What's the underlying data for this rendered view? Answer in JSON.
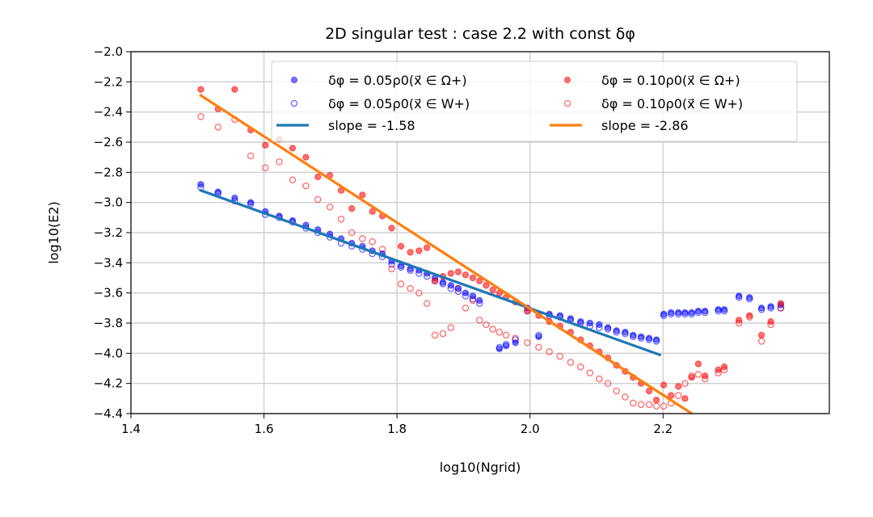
{
  "chart_data": {
    "type": "scatter",
    "title": "2D singular test : case 2.2 with const δφ",
    "xlabel": "log10(Ngrid)",
    "ylabel": "log10(E2)",
    "xlim": [
      1.4,
      2.45
    ],
    "ylim": [
      -4.4,
      -2.0
    ],
    "xticks": [
      1.4,
      1.6,
      1.8,
      2.0,
      2.2
    ],
    "xtick_labels": [
      "1.4",
      "1.6",
      "1.8",
      "2.0",
      "2.2"
    ],
    "yticks": [
      -4.4,
      -4.2,
      -4.0,
      -3.8,
      -3.6,
      -3.4,
      -3.2,
      -3.0,
      -2.8,
      -2.6,
      -2.4,
      -2.2,
      -2.0
    ],
    "ytick_labels": [
      "−4.4",
      "−4.2",
      "−4.0",
      "−3.8",
      "−3.6",
      "−3.4",
      "−3.2",
      "−3.0",
      "−2.8",
      "−2.6",
      "−2.4",
      "−2.2",
      "−2.0"
    ],
    "grid": true,
    "legend_position": "top-right",
    "series": [
      {
        "name": "δφ = 0.05ρ0(x⃗ ∈ Ω+)",
        "kind": "scatter-filled",
        "color": "#0000ff",
        "x": [
          1.505,
          1.531,
          1.556,
          1.58,
          1.602,
          1.623,
          1.643,
          1.663,
          1.681,
          1.699,
          1.716,
          1.732,
          1.748,
          1.763,
          1.778,
          1.792,
          1.806,
          1.82,
          1.833,
          1.845,
          1.857,
          1.869,
          1.881,
          1.892,
          1.903,
          1.914,
          1.924,
          1.954,
          1.964,
          1.978,
          1.996,
          2.013,
          2.029,
          2.045,
          2.061,
          2.076,
          2.09,
          2.104,
          2.117,
          2.13,
          2.143,
          2.155,
          2.167,
          2.179,
          2.19,
          2.201,
          2.212,
          2.223,
          2.233,
          2.243,
          2.253,
          2.263,
          2.283,
          2.292,
          2.314,
          2.33,
          2.348,
          2.362,
          2.377
        ],
        "y": [
          -2.88,
          -2.93,
          -2.97,
          -3.0,
          -3.06,
          -3.09,
          -3.12,
          -3.15,
          -3.18,
          -3.21,
          -3.24,
          -3.27,
          -3.29,
          -3.32,
          -3.34,
          -3.39,
          -3.42,
          -3.44,
          -3.45,
          -3.47,
          -3.5,
          -3.53,
          -3.55,
          -3.57,
          -3.6,
          -3.62,
          -3.65,
          -3.97,
          -3.95,
          -3.93,
          -3.7,
          -3.89,
          -3.74,
          -3.75,
          -3.77,
          -3.79,
          -3.8,
          -3.81,
          -3.83,
          -3.85,
          -3.86,
          -3.88,
          -3.89,
          -3.9,
          -3.91,
          -3.74,
          -3.73,
          -3.73,
          -3.73,
          -3.73,
          -3.72,
          -3.72,
          -3.71,
          -3.71,
          -3.62,
          -3.63,
          -3.7,
          -3.69,
          -3.68
        ]
      },
      {
        "name": "δφ = 0.05ρ0(x⃗ ∈ W+)",
        "kind": "scatter-open",
        "color": "#0000ff",
        "x": [
          1.505,
          1.531,
          1.556,
          1.58,
          1.602,
          1.623,
          1.643,
          1.663,
          1.681,
          1.699,
          1.716,
          1.732,
          1.748,
          1.763,
          1.778,
          1.792,
          1.806,
          1.82,
          1.833,
          1.845,
          1.857,
          1.869,
          1.881,
          1.892,
          1.903,
          1.914,
          1.924,
          1.954,
          1.964,
          1.978,
          1.996,
          2.013,
          2.029,
          2.045,
          2.061,
          2.076,
          2.09,
          2.104,
          2.117,
          2.13,
          2.143,
          2.155,
          2.167,
          2.179,
          2.19,
          2.201,
          2.212,
          2.223,
          2.233,
          2.243,
          2.253,
          2.263,
          2.283,
          2.292,
          2.314,
          2.33,
          2.348,
          2.362,
          2.377
        ],
        "y": [
          -2.9,
          -2.94,
          -2.99,
          -3.01,
          -3.08,
          -3.1,
          -3.13,
          -3.17,
          -3.2,
          -3.23,
          -3.27,
          -3.29,
          -3.31,
          -3.34,
          -3.36,
          -3.41,
          -3.43,
          -3.45,
          -3.47,
          -3.49,
          -3.52,
          -3.54,
          -3.57,
          -3.59,
          -3.62,
          -3.64,
          -3.67,
          -3.96,
          -3.94,
          -3.91,
          -3.72,
          -3.88,
          -3.75,
          -3.76,
          -3.78,
          -3.8,
          -3.82,
          -3.83,
          -3.84,
          -3.86,
          -3.87,
          -3.89,
          -3.9,
          -3.91,
          -3.92,
          -3.75,
          -3.74,
          -3.74,
          -3.74,
          -3.74,
          -3.73,
          -3.73,
          -3.72,
          -3.72,
          -3.63,
          -3.64,
          -3.71,
          -3.7,
          -3.7
        ]
      },
      {
        "name": "δφ = 0.10ρ0(x⃗ ∈ Ω+)",
        "kind": "scatter-filled",
        "color": "#ff0000",
        "x": [
          1.505,
          1.531,
          1.556,
          1.58,
          1.602,
          1.623,
          1.643,
          1.663,
          1.681,
          1.699,
          1.716,
          1.732,
          1.748,
          1.763,
          1.778,
          1.792,
          1.806,
          1.82,
          1.833,
          1.845,
          1.857,
          1.869,
          1.881,
          1.892,
          1.903,
          1.914,
          1.924,
          1.934,
          1.944,
          1.954,
          1.964,
          1.978,
          1.996,
          2.013,
          2.029,
          2.045,
          2.061,
          2.076,
          2.09,
          2.104,
          2.117,
          2.13,
          2.143,
          2.155,
          2.167,
          2.179,
          2.19,
          2.201,
          2.212,
          2.223,
          2.233,
          2.243,
          2.253,
          2.263,
          2.283,
          2.292,
          2.314,
          2.33,
          2.348,
          2.362,
          2.377
        ],
        "y": [
          -2.25,
          -2.38,
          -2.25,
          -2.52,
          -2.62,
          -2.58,
          -2.64,
          -2.7,
          -2.83,
          -2.82,
          -2.92,
          -3.04,
          -2.95,
          -3.06,
          -3.09,
          -3.17,
          -3.29,
          -3.33,
          -3.32,
          -3.3,
          -3.52,
          -3.49,
          -3.47,
          -3.46,
          -3.48,
          -3.5,
          -3.52,
          -3.55,
          -3.58,
          -3.6,
          -3.63,
          -3.66,
          -3.72,
          -3.75,
          -3.79,
          -3.82,
          -3.86,
          -3.91,
          -3.95,
          -3.99,
          -4.03,
          -4.08,
          -4.12,
          -4.16,
          -4.2,
          -4.25,
          -4.31,
          -4.21,
          -4.28,
          -4.22,
          -4.3,
          -4.16,
          -4.07,
          -4.15,
          -4.11,
          -4.09,
          -3.78,
          -3.75,
          -3.88,
          -3.79,
          -3.67
        ]
      },
      {
        "name": "δφ = 0.10ρ0(x⃗ ∈ W+)",
        "kind": "scatter-open",
        "color": "#ff0000",
        "x": [
          1.505,
          1.531,
          1.556,
          1.58,
          1.602,
          1.623,
          1.643,
          1.663,
          1.681,
          1.699,
          1.716,
          1.732,
          1.748,
          1.763,
          1.778,
          1.792,
          1.806,
          1.82,
          1.833,
          1.845,
          1.857,
          1.869,
          1.881,
          1.892,
          1.903,
          1.914,
          1.924,
          1.934,
          1.944,
          1.954,
          1.964,
          1.978,
          1.996,
          2.013,
          2.029,
          2.045,
          2.061,
          2.076,
          2.09,
          2.104,
          2.117,
          2.13,
          2.143,
          2.155,
          2.167,
          2.179,
          2.19,
          2.201,
          2.212,
          2.223,
          2.233,
          2.243,
          2.253,
          2.263,
          2.283,
          2.292,
          2.314,
          2.33,
          2.348,
          2.362,
          2.377
        ],
        "y": [
          -2.43,
          -2.5,
          -2.45,
          -2.69,
          -2.77,
          -2.73,
          -2.85,
          -2.89,
          -2.98,
          -3.03,
          -3.11,
          -3.2,
          -3.24,
          -3.26,
          -3.31,
          -3.44,
          -3.54,
          -3.57,
          -3.6,
          -3.67,
          -3.88,
          -3.87,
          -3.83,
          -3.57,
          -3.7,
          -3.65,
          -3.78,
          -3.81,
          -3.84,
          -3.86,
          -3.88,
          -3.9,
          -3.93,
          -3.96,
          -3.99,
          -4.02,
          -4.06,
          -4.09,
          -4.13,
          -4.17,
          -4.2,
          -4.25,
          -4.29,
          -4.33,
          -4.34,
          -4.34,
          -4.35,
          -4.35,
          -4.33,
          -4.28,
          -4.2,
          -4.15,
          -4.14,
          -4.17,
          -4.13,
          -4.11,
          -3.8,
          -3.76,
          -3.92,
          -3.81,
          -3.7
        ]
      },
      {
        "name": "slope = -1.58",
        "kind": "line",
        "color": "#1f77b4",
        "x": [
          1.505,
          2.195
        ],
        "y": [
          -2.92,
          -4.01
        ]
      },
      {
        "name": "slope = -2.86",
        "kind": "line",
        "color": "#ff7f0e",
        "x": [
          1.505,
          2.2432
        ],
        "y": [
          -2.29,
          -4.4
        ]
      }
    ]
  }
}
